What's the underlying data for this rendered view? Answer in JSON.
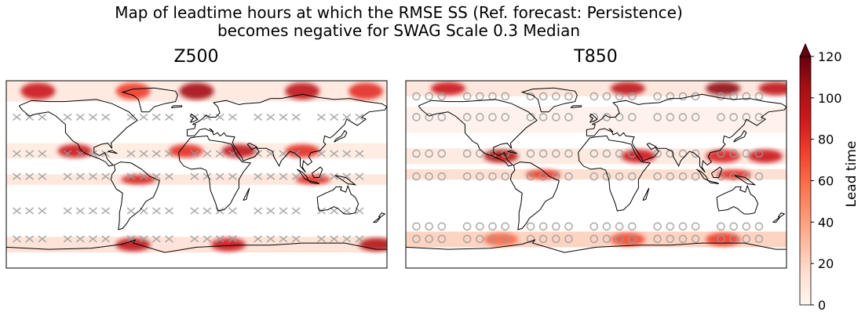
{
  "chart_data": {
    "type": "heatmap",
    "title_line1": "Map of leadtime hours at which the RMSE SS (Ref. forecast: Persistence)",
    "title_line2": "becomes negative for SWAG Scale 0.3 Median",
    "colorbar": {
      "label": "Lead time",
      "range": [
        0,
        120
      ],
      "ticks": [
        "0",
        "20",
        "40",
        "60",
        "80",
        "100",
        "120"
      ],
      "extend": "max",
      "colormap": "Reds",
      "colors": [
        "#fff5f0",
        "#fee0d2",
        "#fcbba1",
        "#fc9272",
        "#fb6a4a",
        "#ef3b2c",
        "#cb181d",
        "#a50f15",
        "#67000d"
      ]
    },
    "panels": [
      {
        "name": "Z500",
        "bands": [
          {
            "lat": [
              70,
              90
            ],
            "level": 8,
            "hotspots": [
              [
                -150,
                90
              ],
              [
                -60,
                75
              ],
              [
                0,
                105
              ],
              [
                100,
                95
              ],
              [
                160,
                80
              ]
            ]
          },
          {
            "lat": [
              15,
              30
            ],
            "level": 6,
            "hotspots": [
              [
                -115,
                90
              ],
              [
                -10,
                80
              ],
              [
                40,
                95
              ],
              [
                100,
                80
              ]
            ]
          },
          {
            "lat": [
              -10,
              0
            ],
            "level": 10,
            "hotspots": [
              [
                -55,
                85
              ],
              [
                110,
                80
              ]
            ]
          },
          {
            "lat": [
              -60,
              -75
            ],
            "level": 12,
            "hotspots": [
              [
                -60,
                95
              ],
              [
                30,
                90
              ],
              [
                170,
                100
              ]
            ]
          }
        ],
        "hatch_rows_lat": [
          55,
          20,
          -2,
          -35,
          -62
        ],
        "hatch_style": "x"
      },
      {
        "name": "T850",
        "bands": [
          {
            "lat": [
              75,
              90
            ],
            "level": 10,
            "hotspots": [
              [
                -140,
                90
              ],
              [
                30,
                95
              ],
              [
                120,
                110
              ],
              [
                170,
                95
              ]
            ]
          },
          {
            "lat": [
              40,
              65
            ],
            "level": 2,
            "hotspots": []
          },
          {
            "lat": [
              10,
              25
            ],
            "level": 8,
            "hotspots": [
              [
                -90,
                100
              ],
              [
                40,
                90
              ],
              [
                120,
                85
              ],
              [
                160,
                90
              ]
            ]
          },
          {
            "lat": [
              -5,
              5
            ],
            "level": 15,
            "hotspots": [
              [
                -50,
                75
              ],
              [
                130,
                80
              ]
            ]
          },
          {
            "lat": [
              -55,
              -70
            ],
            "level": 20,
            "hotspots": [
              [
                -90,
                60
              ],
              [
                30,
                70
              ],
              [
                120,
                75
              ]
            ]
          }
        ],
        "hatch_rows_lat": [
          75,
          55,
          20,
          -2,
          -50,
          -62
        ],
        "hatch_style": "o"
      }
    ]
  }
}
